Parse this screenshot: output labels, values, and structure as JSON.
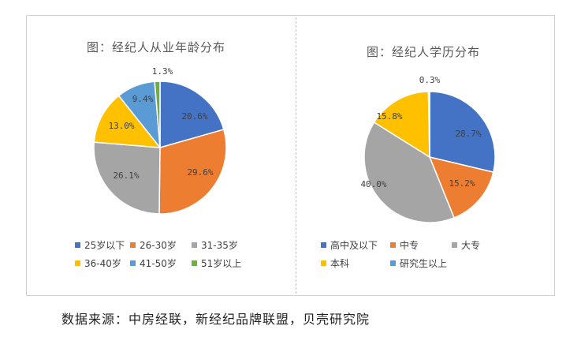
{
  "source": "数据来源：中房经联，新经纪品牌联盟，贝壳研究院",
  "chart_data": [
    {
      "type": "pie",
      "title": "图：经纪人从业年龄分布",
      "unit": "%",
      "labels": [
        "25岁以下",
        "26-30岁",
        "31-35岁",
        "36-40岁",
        "41-50岁",
        "51岁以上"
      ],
      "display": [
        "20.6%",
        "29.6%",
        "26.1%",
        "13.0%",
        "9.4%",
        "1.3%"
      ],
      "values": [
        20.6,
        29.6,
        26.1,
        13.0,
        9.4,
        1.3
      ],
      "colors": [
        "#4472C4",
        "#ED7D31",
        "#A5A5A5",
        "#FFC000",
        "#5B9BD5",
        "#70AD47"
      ],
      "legend": "bottom"
    },
    {
      "type": "pie",
      "title": "图：经纪人学历分布",
      "unit": "%",
      "labels": [
        "高中及以下",
        "中专",
        "大专",
        "本科",
        "研究生以上"
      ],
      "display": [
        "28.7%",
        "15.2%",
        "40.0%",
        "15.8%",
        "0.3%"
      ],
      "values": [
        28.7,
        15.2,
        40.0,
        15.8,
        0.3
      ],
      "colors": [
        "#4472C4",
        "#ED7D31",
        "#A5A5A5",
        "#FFC000",
        "#5B9BD5"
      ],
      "legend": "bottom"
    }
  ]
}
